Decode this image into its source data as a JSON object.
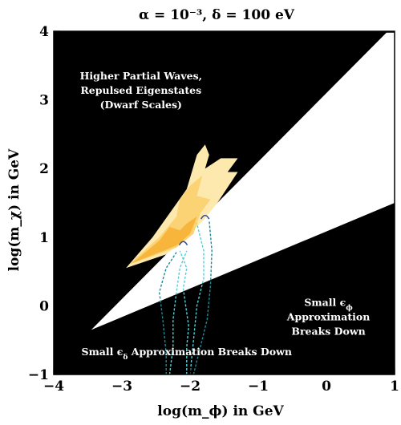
{
  "chart_data": {
    "type": "area",
    "title": "α = 10⁻³,  δ = 100 eV",
    "xlabel": "log(m_ϕ) in GeV",
    "ylabel": "log(m_χ) in GeV",
    "xlim": [
      -4,
      1
    ],
    "ylim": [
      -1,
      4
    ],
    "xticks": [
      "−4",
      "−3",
      "−2",
      "−1",
      "0",
      "1"
    ],
    "yticks": [
      "−1",
      "0",
      "1",
      "2",
      "3",
      "4"
    ],
    "grid": false,
    "colors": {
      "excluded": "#000000",
      "allowed": "#ffffff",
      "band_light": "#fde9ae",
      "band_mid": "#fbd274",
      "band_dark": "#f7b53b",
      "dashed": "#4fd0d8",
      "dashed_dark": "#1c8a98",
      "marker": "#3a4f9a"
    },
    "regions": {
      "allowed_wedge": [
        [
          -3.45,
          -0.35
        ],
        [
          0.88,
          3.98
        ],
        [
          1.0,
          3.98
        ],
        [
          1.0,
          1.5
        ]
      ],
      "bands": [
        {
          "tone": "band_light",
          "points": [
            [
              -2.94,
              0.55
            ],
            [
              -2.55,
              1.0
            ],
            [
              -2.05,
              1.7
            ],
            [
              -1.9,
              2.2
            ],
            [
              -1.78,
              2.35
            ],
            [
              -1.72,
              2.2
            ],
            [
              -1.78,
              2.0
            ],
            [
              -1.55,
              2.15
            ],
            [
              -1.3,
              2.15
            ],
            [
              -1.45,
              1.95
            ],
            [
              -1.3,
              1.95
            ],
            [
              -1.6,
              1.5
            ],
            [
              -1.8,
              1.25
            ],
            [
              -2.1,
              0.95
            ],
            [
              -2.35,
              0.75
            ]
          ]
        },
        {
          "tone": "band_mid",
          "points": [
            [
              -2.9,
              0.6
            ],
            [
              -2.45,
              1.0
            ],
            [
              -2.2,
              1.3
            ],
            [
              -2.15,
              1.55
            ],
            [
              -2.0,
              1.75
            ],
            [
              -1.82,
              1.9
            ],
            [
              -1.9,
              1.6
            ],
            [
              -1.7,
              1.55
            ],
            [
              -1.85,
              1.35
            ],
            [
              -1.95,
              1.05
            ],
            [
              -2.2,
              0.85
            ]
          ]
        },
        {
          "tone": "band_dark",
          "points": [
            [
              -2.85,
              0.62
            ],
            [
              -2.45,
              0.95
            ],
            [
              -2.3,
              1.15
            ],
            [
              -2.15,
              1.1
            ],
            [
              -2.05,
              1.2
            ],
            [
              -1.9,
              1.3
            ],
            [
              -2.0,
              1.05
            ],
            [
              -2.2,
              0.88
            ]
          ]
        }
      ]
    },
    "dashed_curves": [
      {
        "tone": "dashed_dark",
        "points": [
          [
            -2.35,
            -1.0
          ],
          [
            -2.35,
            -0.7
          ],
          [
            -2.4,
            -0.2
          ],
          [
            -2.45,
            0.2
          ],
          [
            -2.35,
            0.55
          ],
          [
            -2.2,
            0.78
          ]
        ]
      },
      {
        "tone": "dashed",
        "points": [
          [
            -2.3,
            -1.0
          ],
          [
            -2.25,
            -0.6
          ],
          [
            -2.25,
            -0.2
          ],
          [
            -2.2,
            0.2
          ],
          [
            -2.15,
            0.55
          ],
          [
            -2.05,
            0.8
          ]
        ]
      },
      {
        "tone": "dashed",
        "points": [
          [
            -2.05,
            -1.0
          ],
          [
            -2.05,
            -0.6
          ],
          [
            -2.02,
            -0.3
          ],
          [
            -2.1,
            0.25
          ],
          [
            -2.05,
            0.55
          ],
          [
            -2.15,
            0.8
          ]
        ]
      },
      {
        "tone": "dashed",
        "points": [
          [
            -2.0,
            -1.0
          ],
          [
            -1.95,
            -0.5
          ],
          [
            -1.9,
            0.0
          ],
          [
            -1.8,
            0.4
          ],
          [
            -1.8,
            0.8
          ],
          [
            -1.9,
            1.2
          ]
        ]
      },
      {
        "tone": "dashed_dark",
        "points": [
          [
            -1.95,
            -1.0
          ],
          [
            -1.85,
            -0.6
          ],
          [
            -1.75,
            -0.2
          ],
          [
            -1.7,
            0.3
          ],
          [
            -1.68,
            0.8
          ],
          [
            -1.72,
            1.25
          ]
        ]
      }
    ],
    "markers": [
      {
        "x": -2.1,
        "y": 0.92
      },
      {
        "x": -1.78,
        "y": 1.3
      }
    ],
    "annotations": [
      {
        "lines": [
          "Higher Partial Waves,",
          "Repulsed Eigenstates",
          "(Dwarf Scales)"
        ],
        "x": -2.72,
        "y": 3.3
      },
      {
        "lines": [
          "Small ϵ",
          "Approximation",
          "Breaks Down"
        ],
        "subscripts": [
          "ϕ",
          "",
          ""
        ],
        "x": 0.03,
        "y": 0.0
      },
      {
        "lines": [
          "Small ϵ"
        ],
        "subscripts": [
          "δ"
        ],
        "suffix": " Approximation Breaks Down",
        "x": -2.05,
        "y": -0.72
      }
    ]
  }
}
